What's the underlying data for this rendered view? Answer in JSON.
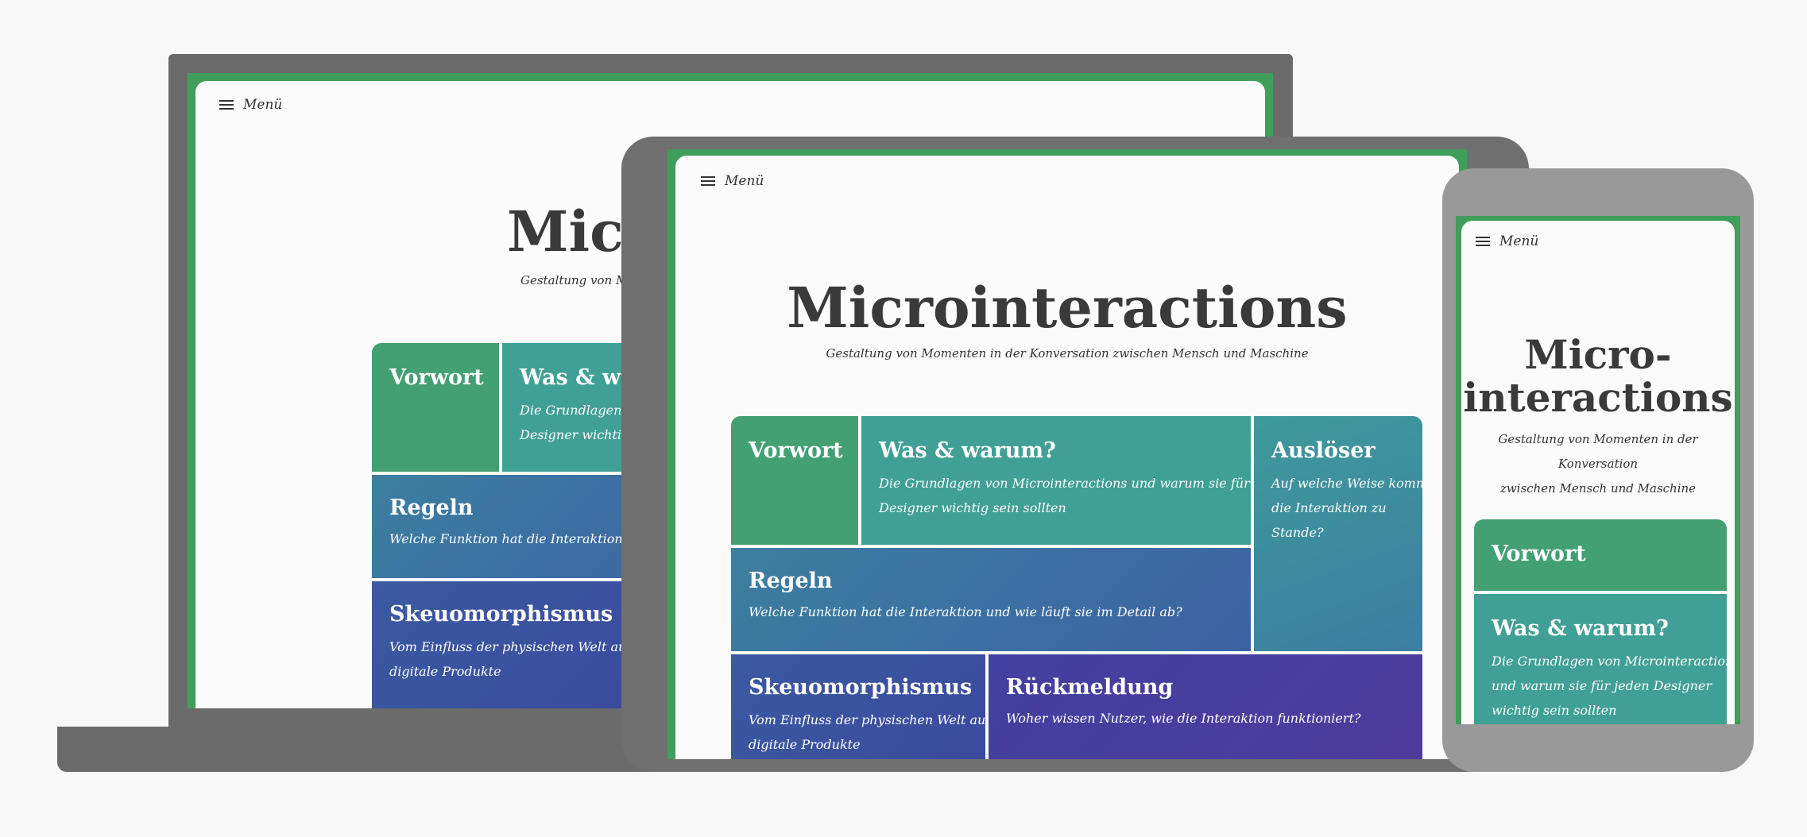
{
  "menu_label": "Menü",
  "title": "Microinteractions",
  "title_phone_line1": "Micro-",
  "title_phone_line2": "interactions",
  "subtitle": "Gestaltung von Momenten in der Konversation zwischen Mensch und Maschine",
  "subtitle_laptop_visible": "Gestaltung von Mo",
  "title_laptop_visible": "Micr",
  "laptop_was_visible": "Was & wa",
  "laptop_was_desc_l1": "Die Grundlagen vo",
  "laptop_was_desc_l2": "Designer wichtig se",
  "laptop_regeln_desc": "Welche Funktion hat die Interaktion und wi",
  "laptop_skeuo_l1": "Vom Einfluss der physischen Welt auf",
  "laptop_skeuo_l2": "digitale Produkte",
  "phone_subtitle_l1": "Gestaltung von Momenten in der Konversation",
  "phone_subtitle_l2": "zwischen Mensch und Maschine",
  "phone_was_l1": "Die Grundlagen von Microinteractions",
  "phone_was_l2": "und warum sie für jeden Designer",
  "phone_was_l3": "wichtig sein sollten",
  "tiles": {
    "vorwort": {
      "title": "Vorwort"
    },
    "was": {
      "title": "Was & warum?",
      "desc_l1": "Die Grundlagen von Microinteractions und warum sie für jeden",
      "desc_l2": "Designer wichtig sein sollten"
    },
    "ausloeser": {
      "title": "Auslöser",
      "desc_l1": "Auf welche Weise kommt",
      "desc_l2": "die Interaktion zu",
      "desc_l3": "Stande?"
    },
    "regeln": {
      "title": "Regeln",
      "desc": "Welche Funktion hat die Interaktion und wie läuft sie im Detail ab?"
    },
    "skeuo": {
      "title": "Skeuomorphismus",
      "desc_l1": "Vom Einfluss der physischen Welt auf",
      "desc_l2": "digitale Produkte"
    },
    "rueck": {
      "title": "Rückmeldung",
      "desc": "Woher wissen Nutzer, wie die Interaktion funktioniert?"
    }
  },
  "colors": {
    "page_bg": "#f8f8f8",
    "device_dark": "#6b6b6b",
    "device_light": "#999999",
    "frame_green": "#3f9e5a",
    "screen_bg": "#fbfbfb",
    "tile_green": "#42a072",
    "tile_teal": "#40a095",
    "tile_blue": "#3c6fa2",
    "tile_indigo": "#3b4f9e",
    "tile_purple": "#4a3e9e"
  }
}
